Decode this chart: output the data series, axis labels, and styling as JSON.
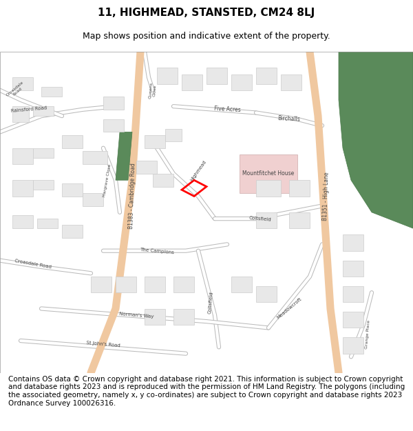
{
  "title_line1": "11, HIGHMEAD, STANSTED, CM24 8LJ",
  "title_line2": "Map shows position and indicative extent of the property.",
  "footer_text": "Contains OS data © Crown copyright and database right 2021. This information is subject to Crown copyright and database rights 2023 and is reproduced with the permission of HM Land Registry. The polygons (including the associated geometry, namely x, y co-ordinates) are subject to Crown copyright and database rights 2023 Ordnance Survey 100026316.",
  "bg_color": "#ffffff",
  "map_bg": "#f0f0f0",
  "road_major_color": "#f0c8a0",
  "road_minor_color": "#ffffff",
  "road_outline_color": "#bbbbbb",
  "building_color": "#e8e8e8",
  "building_outline": "#cccccc",
  "green_area_color": "#5a8a5a",
  "pink_area_color": "#f0d0d0",
  "highlight_color": "#ff0000",
  "title_fontsize": 11,
  "subtitle_fontsize": 9,
  "footer_fontsize": 7.5,
  "label_color": "#444444"
}
